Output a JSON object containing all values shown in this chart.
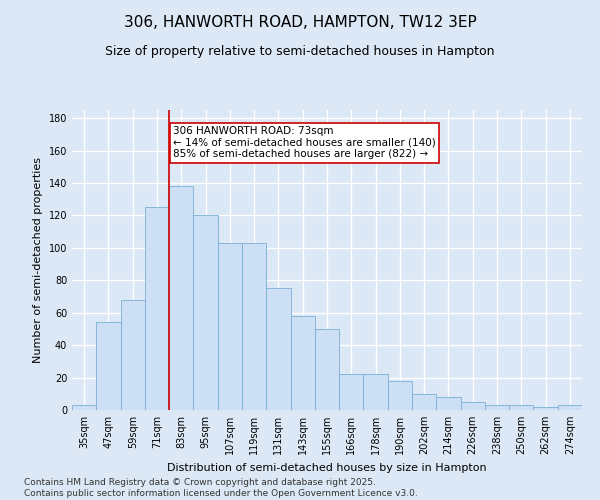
{
  "title": "306, HANWORTH ROAD, HAMPTON, TW12 3EP",
  "subtitle": "Size of property relative to semi-detached houses in Hampton",
  "xlabel": "Distribution of semi-detached houses by size in Hampton",
  "ylabel": "Number of semi-detached properties",
  "categories": [
    "35sqm",
    "47sqm",
    "59sqm",
    "71sqm",
    "83sqm",
    "95sqm",
    "107sqm",
    "119sqm",
    "131sqm",
    "143sqm",
    "155sqm",
    "166sqm",
    "178sqm",
    "190sqm",
    "202sqm",
    "214sqm",
    "226sqm",
    "238sqm",
    "250sqm",
    "262sqm",
    "274sqm"
  ],
  "values": [
    3,
    54,
    68,
    125,
    138,
    120,
    103,
    103,
    75,
    58,
    50,
    22,
    22,
    18,
    10,
    8,
    5,
    3,
    3,
    2,
    3
  ],
  "bar_color": "#ccdff5",
  "bar_edge_color": "#7aafd4",
  "vline_color": "#cc0000",
  "vline_index": 3.5,
  "annotation_text": "306 HANWORTH ROAD: 73sqm\n← 14% of semi-detached houses are smaller (140)\n85% of semi-detached houses are larger (822) →",
  "annotation_box_facecolor": "#ffffff",
  "annotation_box_edgecolor": "#cc0000",
  "ylim": [
    0,
    185
  ],
  "yticks": [
    0,
    20,
    40,
    60,
    80,
    100,
    120,
    140,
    160,
    180
  ],
  "footer": "Contains HM Land Registry data © Crown copyright and database right 2025.\nContains public sector information licensed under the Open Government Licence v3.0.",
  "bg_color": "#dce8f5",
  "plot_bg_color": "#dce8f5",
  "grid_color": "#ffffff",
  "title_fontsize": 11,
  "subtitle_fontsize": 9,
  "axis_label_fontsize": 8,
  "tick_fontsize": 7,
  "footer_fontsize": 6.5,
  "annotation_fontsize": 7.5
}
